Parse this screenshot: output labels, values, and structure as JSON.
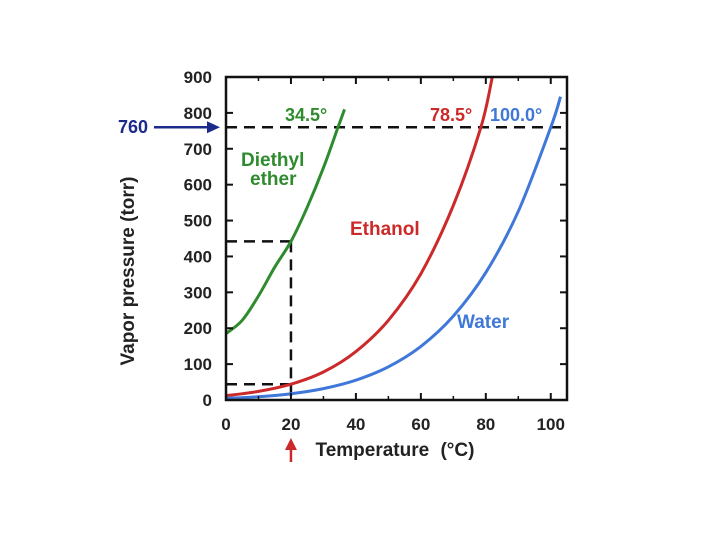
{
  "chart_data": {
    "type": "line",
    "title": "",
    "xlabel": "Temperature",
    "xlabel_unit": "(°C)",
    "ylabel": "Vapor pressure (torr)",
    "xlim": [
      0,
      105
    ],
    "ylim": [
      0,
      900
    ],
    "x_ticks": [
      0,
      20,
      40,
      60,
      80,
      100
    ],
    "y_ticks": [
      0,
      100,
      200,
      300,
      400,
      500,
      600,
      700,
      800,
      900
    ],
    "grid": false,
    "series": [
      {
        "name": "Diethyl ether",
        "label_lines": [
          "Diethyl",
          "ether"
        ],
        "color": "#2e8b2e",
        "boiling_point_label": "34.5°",
        "x": [
          0,
          5,
          10,
          15,
          20,
          25,
          30,
          34.5,
          36.5
        ],
        "y": [
          185,
          222,
          290,
          370,
          442,
          537,
          647,
          760,
          810
        ]
      },
      {
        "name": "Ethanol",
        "color": "#cc2a2a",
        "boiling_point_label": "78.5°",
        "x": [
          0,
          10,
          20,
          30,
          40,
          50,
          60,
          70,
          78.5,
          82
        ],
        "y": [
          12,
          24,
          44,
          78,
          135,
          222,
          352,
          542,
          760,
          900
        ]
      },
      {
        "name": "Water",
        "color": "#3f78d8",
        "boiling_point_label": "100.0°",
        "x": [
          0,
          10,
          20,
          30,
          40,
          50,
          60,
          70,
          80,
          90,
          100,
          103
        ],
        "y": [
          4.6,
          9.2,
          17.5,
          31.8,
          55.3,
          92.5,
          149.4,
          233.7,
          355.1,
          525.8,
          760,
          845
        ]
      }
    ],
    "annotations": {
      "standard_pressure": {
        "value": 760,
        "label": "760",
        "color": "#1c2a8a"
      },
      "reference_temperature": {
        "value": 20,
        "color": "#cc2a2a"
      },
      "reference_pressures_at_20": [
        442,
        44
      ]
    }
  }
}
